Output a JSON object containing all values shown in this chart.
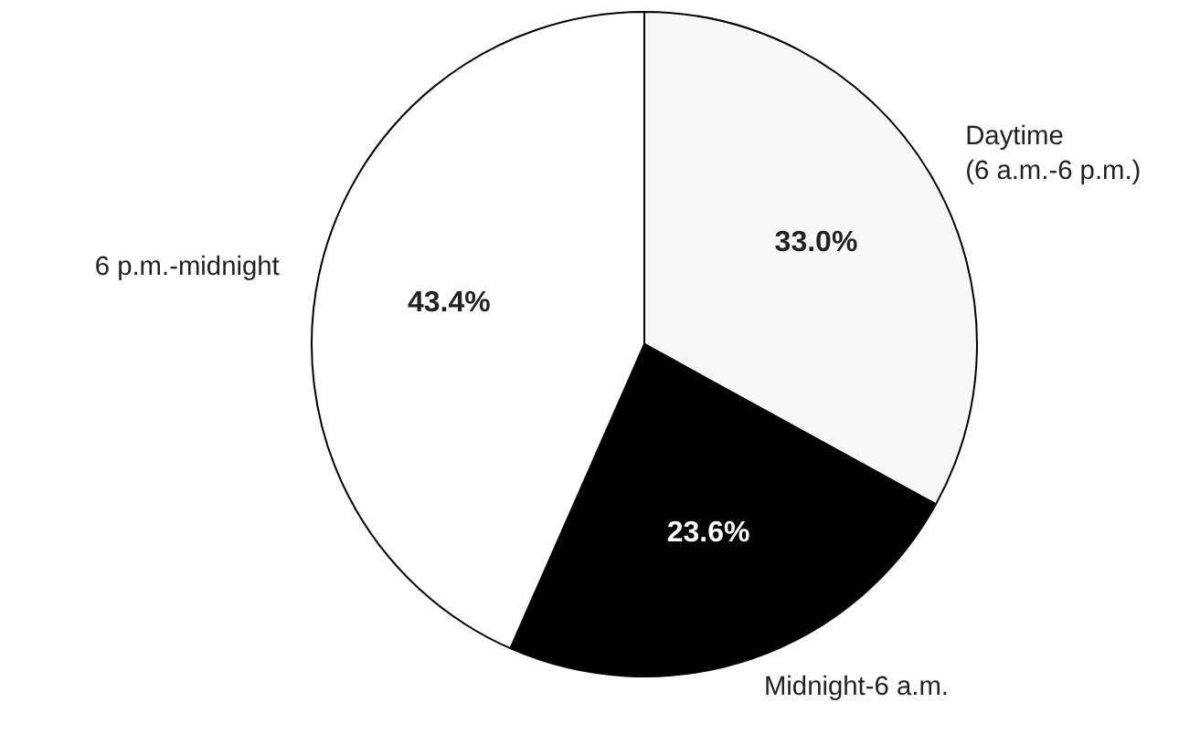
{
  "chart_data": {
    "type": "pie",
    "categories": [
      "Daytime\n(6 a.m.-6 p.m.)",
      "Midnight-6 a.m.",
      "6 p.m.-midnight"
    ],
    "values": [
      33.0,
      23.6,
      43.4
    ],
    "colors": [
      "#f7f7f7",
      "#000000",
      "#ffffff"
    ],
    "value_labels": [
      "33.0%",
      "23.6%",
      "43.4%"
    ]
  }
}
